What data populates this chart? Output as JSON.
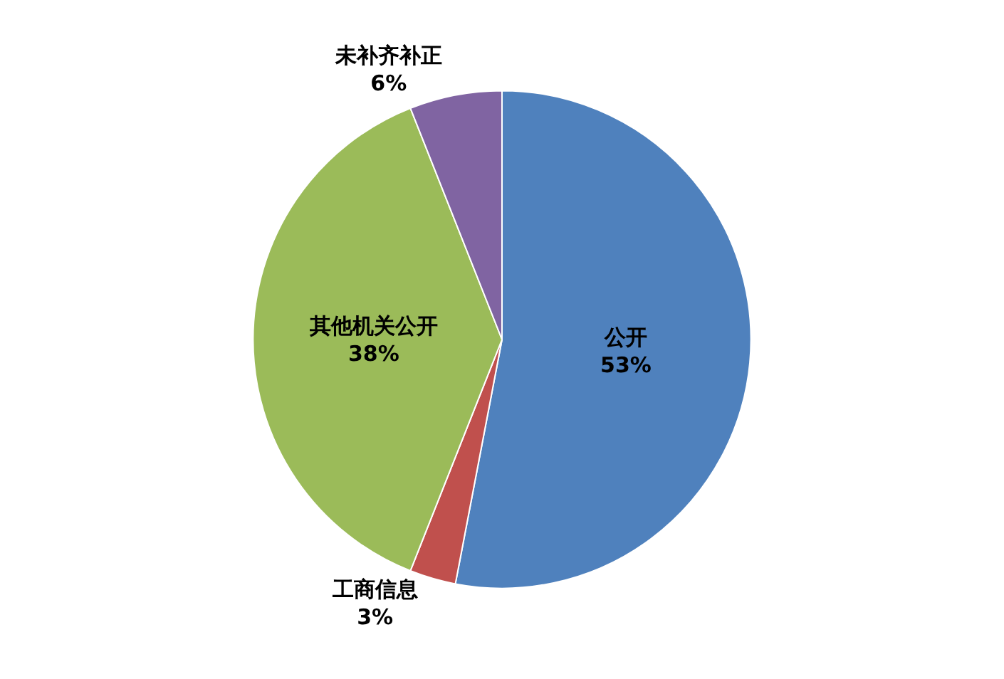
{
  "chart_data": {
    "type": "pie",
    "categories": [
      "公开",
      "工商信息",
      "其他机关公开",
      "未补齐补正"
    ],
    "values": [
      53,
      3,
      38,
      6
    ],
    "value_labels": [
      "53%",
      "3%",
      "38%",
      "6%"
    ],
    "colors": [
      "#4f81bd",
      "#c0504d",
      "#9bbb59",
      "#8064a2"
    ],
    "legend": false
  }
}
